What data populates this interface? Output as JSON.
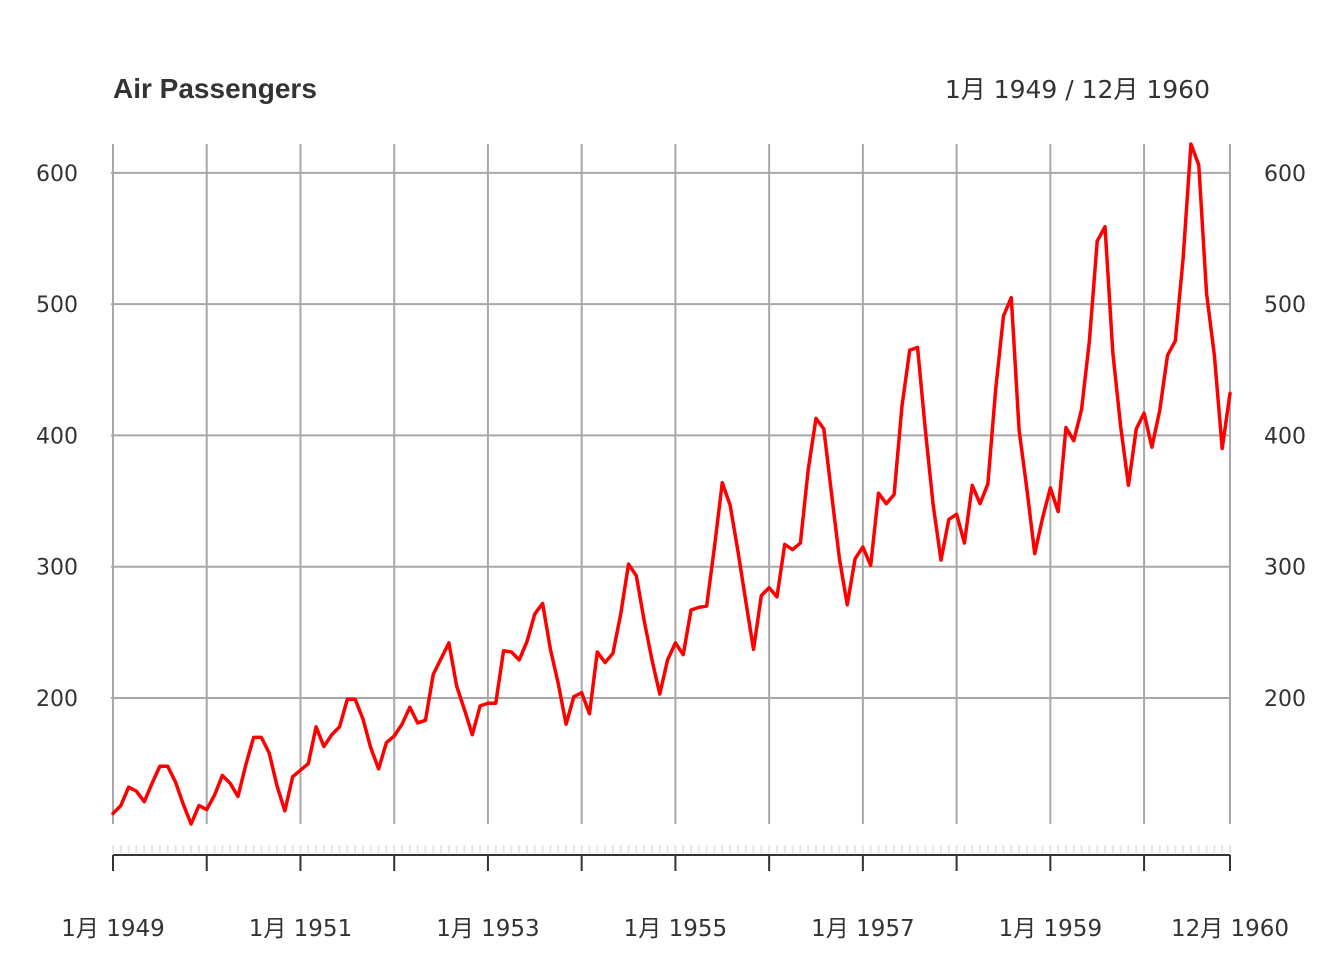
{
  "chart_data": {
    "type": "line",
    "title": "Air Passengers",
    "date_range_label": "1月 1949 / 12月 1960",
    "xlabel": "",
    "ylabel": "",
    "x_start": "1949-01",
    "x_end": "1960-12",
    "frequency": "monthly",
    "ylim": [
      104,
      622
    ],
    "y_ticks": [
      200,
      300,
      400,
      500,
      600
    ],
    "y_tick_labels": [
      "200",
      "300",
      "400",
      "500",
      "600"
    ],
    "x_tick_labels": [
      "1月 1949",
      "1月 1951",
      "1月 1953",
      "1月 1955",
      "1月 1957",
      "1月 1959",
      "12月 1960"
    ],
    "grid": true,
    "series": [
      {
        "name": "",
        "color": "#ff0000",
        "values": [
          112,
          118,
          132,
          129,
          121,
          135,
          148,
          148,
          136,
          119,
          104,
          118,
          115,
          126,
          141,
          135,
          125,
          149,
          170,
          170,
          158,
          133,
          114,
          140,
          145,
          150,
          178,
          163,
          172,
          178,
          199,
          199,
          184,
          162,
          146,
          166,
          171,
          180,
          193,
          181,
          183,
          218,
          230,
          242,
          209,
          191,
          172,
          194,
          196,
          196,
          236,
          235,
          229,
          243,
          264,
          272,
          237,
          211,
          180,
          201,
          204,
          188,
          235,
          227,
          234,
          264,
          302,
          293,
          259,
          229,
          203,
          229,
          242,
          233,
          267,
          269,
          270,
          315,
          364,
          347,
          312,
          274,
          237,
          278,
          284,
          277,
          317,
          313,
          318,
          374,
          413,
          405,
          355,
          306,
          271,
          306,
          315,
          301,
          356,
          348,
          355,
          422,
          465,
          467,
          404,
          347,
          305,
          336,
          340,
          318,
          362,
          348,
          363,
          435,
          491,
          505,
          404,
          359,
          310,
          337,
          360,
          342,
          406,
          396,
          420,
          472,
          548,
          559,
          463,
          407,
          362,
          405,
          417,
          391,
          419,
          461,
          472,
          535,
          622,
          606,
          508,
          461,
          390,
          432
        ]
      }
    ]
  }
}
